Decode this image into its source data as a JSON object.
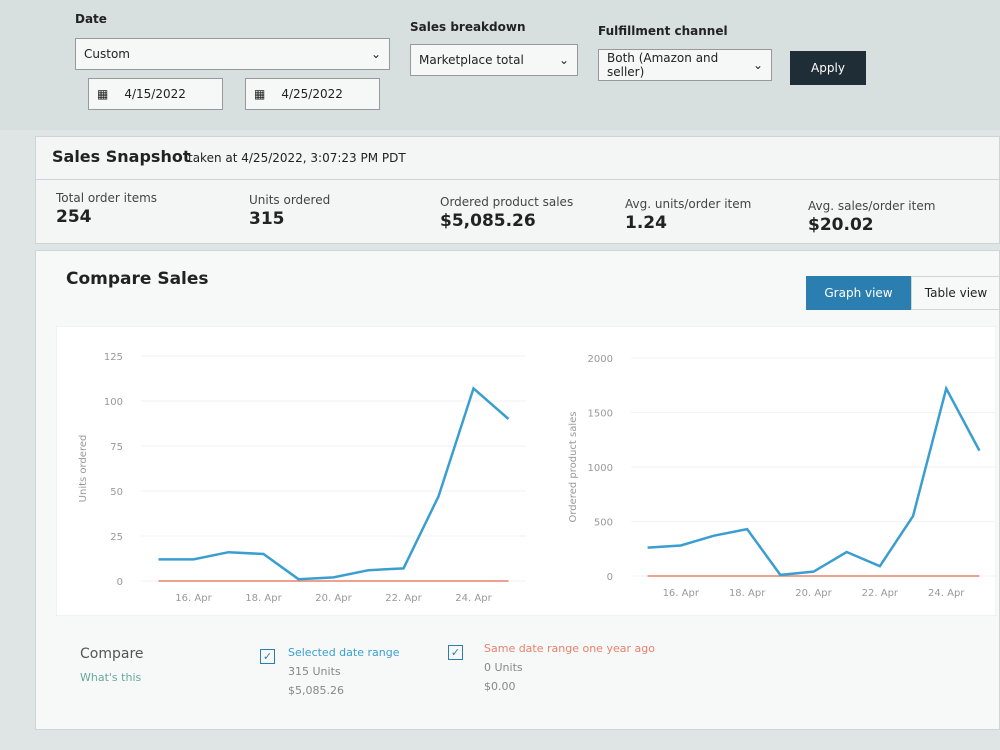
{
  "filters": {
    "date_label": "Date",
    "date_range": "Custom",
    "start_date": "4/15/2022",
    "end_date": "4/25/2022",
    "breakdown_label": "Sales breakdown",
    "breakdown": "Marketplace total",
    "channel_label": "Fulfillment channel",
    "channel": "Both (Amazon and seller)",
    "apply": "Apply"
  },
  "snapshot": {
    "title": "Sales Snapshot",
    "taken_at": "taken at 4/25/2022, 3:07:23 PM PDT",
    "metrics": [
      {
        "label": "Total order items",
        "value": "254"
      },
      {
        "label": "Units ordered",
        "value": "315"
      },
      {
        "label": "Ordered product sales",
        "value": "$5,085.26"
      },
      {
        "label": "Avg. units/order item",
        "value": "1.24"
      },
      {
        "label": "Avg. sales/order item",
        "value": "$20.02"
      }
    ]
  },
  "compare_sales": {
    "title": "Compare Sales",
    "graph_view": "Graph view",
    "table_view": "Table view"
  },
  "chart_data": [
    {
      "type": "line",
      "y_label": "Units ordered",
      "categories": [
        null,
        "16. Apr",
        null,
        "18. Apr",
        null,
        "20. Apr",
        null,
        "22. Apr",
        null,
        "24. Apr",
        null
      ],
      "series": [
        {
          "name": "Selected date range",
          "color": "#3a9fd0",
          "values": [
            12,
            12,
            16,
            15,
            1,
            2,
            6,
            7,
            47,
            107,
            90
          ]
        },
        {
          "name": "Same date range one year ago",
          "color": "#e8826e",
          "values": [
            0,
            0,
            0,
            0,
            0,
            0,
            0,
            0,
            0,
            0,
            0
          ]
        }
      ],
      "ylim": [
        0,
        125
      ],
      "yticks": [
        0,
        25,
        50,
        75,
        100,
        125
      ]
    },
    {
      "type": "line",
      "y_label": "Ordered product sales",
      "categories": [
        null,
        "16. Apr",
        null,
        "18. Apr",
        null,
        "20. Apr",
        null,
        "22. Apr",
        null,
        "24. Apr",
        null
      ],
      "series": [
        {
          "name": "Selected date range",
          "color": "#3a9fd0",
          "values": [
            260,
            280,
            370,
            430,
            10,
            40,
            220,
            90,
            550,
            1720,
            1150
          ]
        },
        {
          "name": "Same date range one year ago",
          "color": "#e8826e",
          "values": [
            0,
            0,
            0,
            0,
            0,
            0,
            0,
            0,
            0,
            0,
            0
          ]
        }
      ],
      "ylim": [
        0,
        2000
      ],
      "yticks": [
        0,
        500,
        1000,
        1500,
        2000
      ]
    }
  ],
  "compare": {
    "title": "Compare",
    "whats_this": "What's this",
    "selected_units": "315 Units",
    "selected_sales": "$5,085.26",
    "last_year_units": "0 Units",
    "last_year_sales": "$0.00"
  }
}
